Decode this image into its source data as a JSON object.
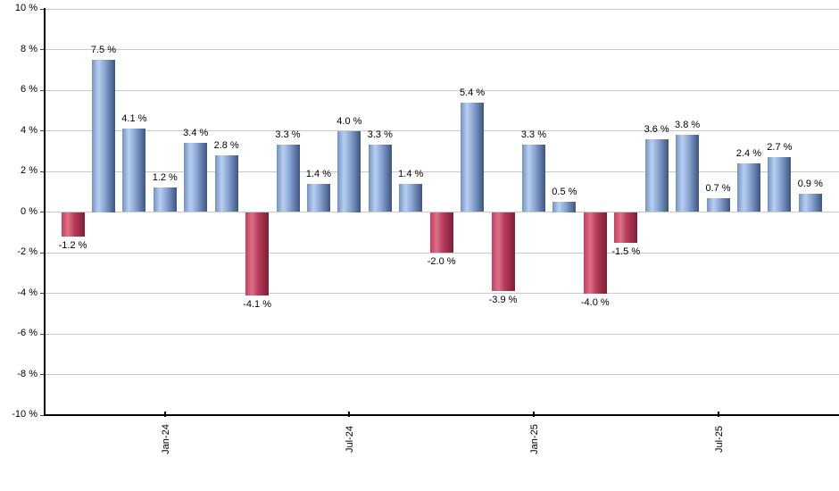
{
  "chart_data": {
    "type": "bar",
    "title": "",
    "xlabel": "",
    "ylabel": "",
    "value_suffix": " %",
    "values": [
      -1.2,
      7.5,
      4.1,
      1.2,
      3.4,
      2.8,
      -4.1,
      3.3,
      1.4,
      4.0,
      3.3,
      1.4,
      -2.0,
      5.4,
      -3.9,
      3.3,
      0.5,
      -4.0,
      -1.5,
      3.6,
      3.8,
      0.7,
      2.4,
      2.7,
      0.9
    ],
    "ylim": [
      -10,
      10
    ],
    "ytick_step": 2,
    "ytick_labels": [
      "10 %",
      "8 %",
      "6 %",
      "4 %",
      "2 %",
      "0 %",
      "-2 %",
      "-4 %",
      "-6 %",
      "-8 %",
      "-10 %"
    ],
    "xticks": [
      {
        "label": "Jan-24",
        "bar_index": 3
      },
      {
        "label": "Jul-24",
        "bar_index": 9
      },
      {
        "label": "Jan-25",
        "bar_index": 15
      },
      {
        "label": "Jul-25",
        "bar_index": 21
      }
    ],
    "grid": true,
    "legend": false,
    "colors": {
      "positive_gradient": [
        "#7292c3",
        "#b8cfee",
        "#8aa6d4",
        "#3d5480"
      ],
      "negative_gradient": [
        "#c93d5e",
        "#da7288",
        "#b83c5c",
        "#7c1f35"
      ],
      "grid_color": "#c9c9c9",
      "axis_color": "#000000",
      "label_color": "#000000"
    }
  }
}
